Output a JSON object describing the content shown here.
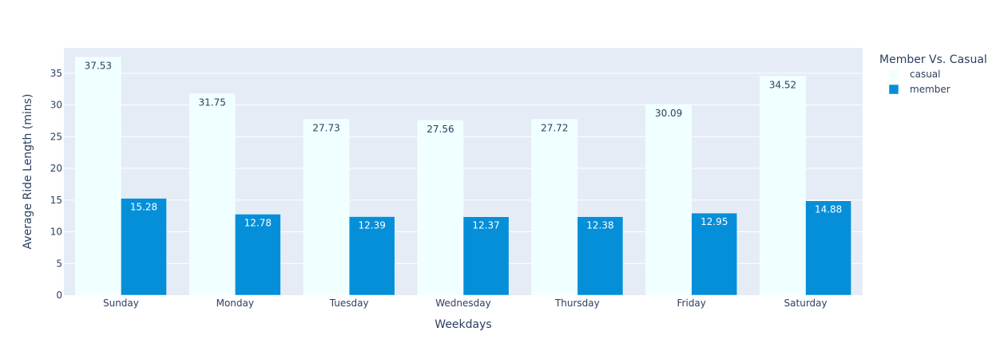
{
  "chart_data": {
    "type": "bar",
    "title": "",
    "xlabel": "Weekdays",
    "ylabel": "Average Ride Length (mins)",
    "ylim": [
      0,
      39
    ],
    "yticks": [
      0,
      5,
      10,
      15,
      20,
      25,
      30,
      35
    ],
    "grid": true,
    "legend_placement": "top-right",
    "legend_title": "Member Vs. Casual",
    "categories": [
      "Sunday",
      "Monday",
      "Tuesday",
      "Wednesday",
      "Thursday",
      "Friday",
      "Saturday"
    ],
    "series": [
      {
        "name": "casual",
        "color": "#f0ffff",
        "label_color": "#2a3f5f",
        "values": [
          37.53,
          31.75,
          27.73,
          27.56,
          27.72,
          30.09,
          34.52
        ]
      },
      {
        "name": "member",
        "color": "#068fd9",
        "label_color": "#ffffff",
        "values": [
          15.28,
          12.78,
          12.39,
          12.37,
          12.38,
          12.95,
          14.88
        ]
      }
    ],
    "colors": {
      "plot_background": "#e5ecf6",
      "gridline": "#ffffff",
      "text": "#2a3f5f"
    }
  }
}
